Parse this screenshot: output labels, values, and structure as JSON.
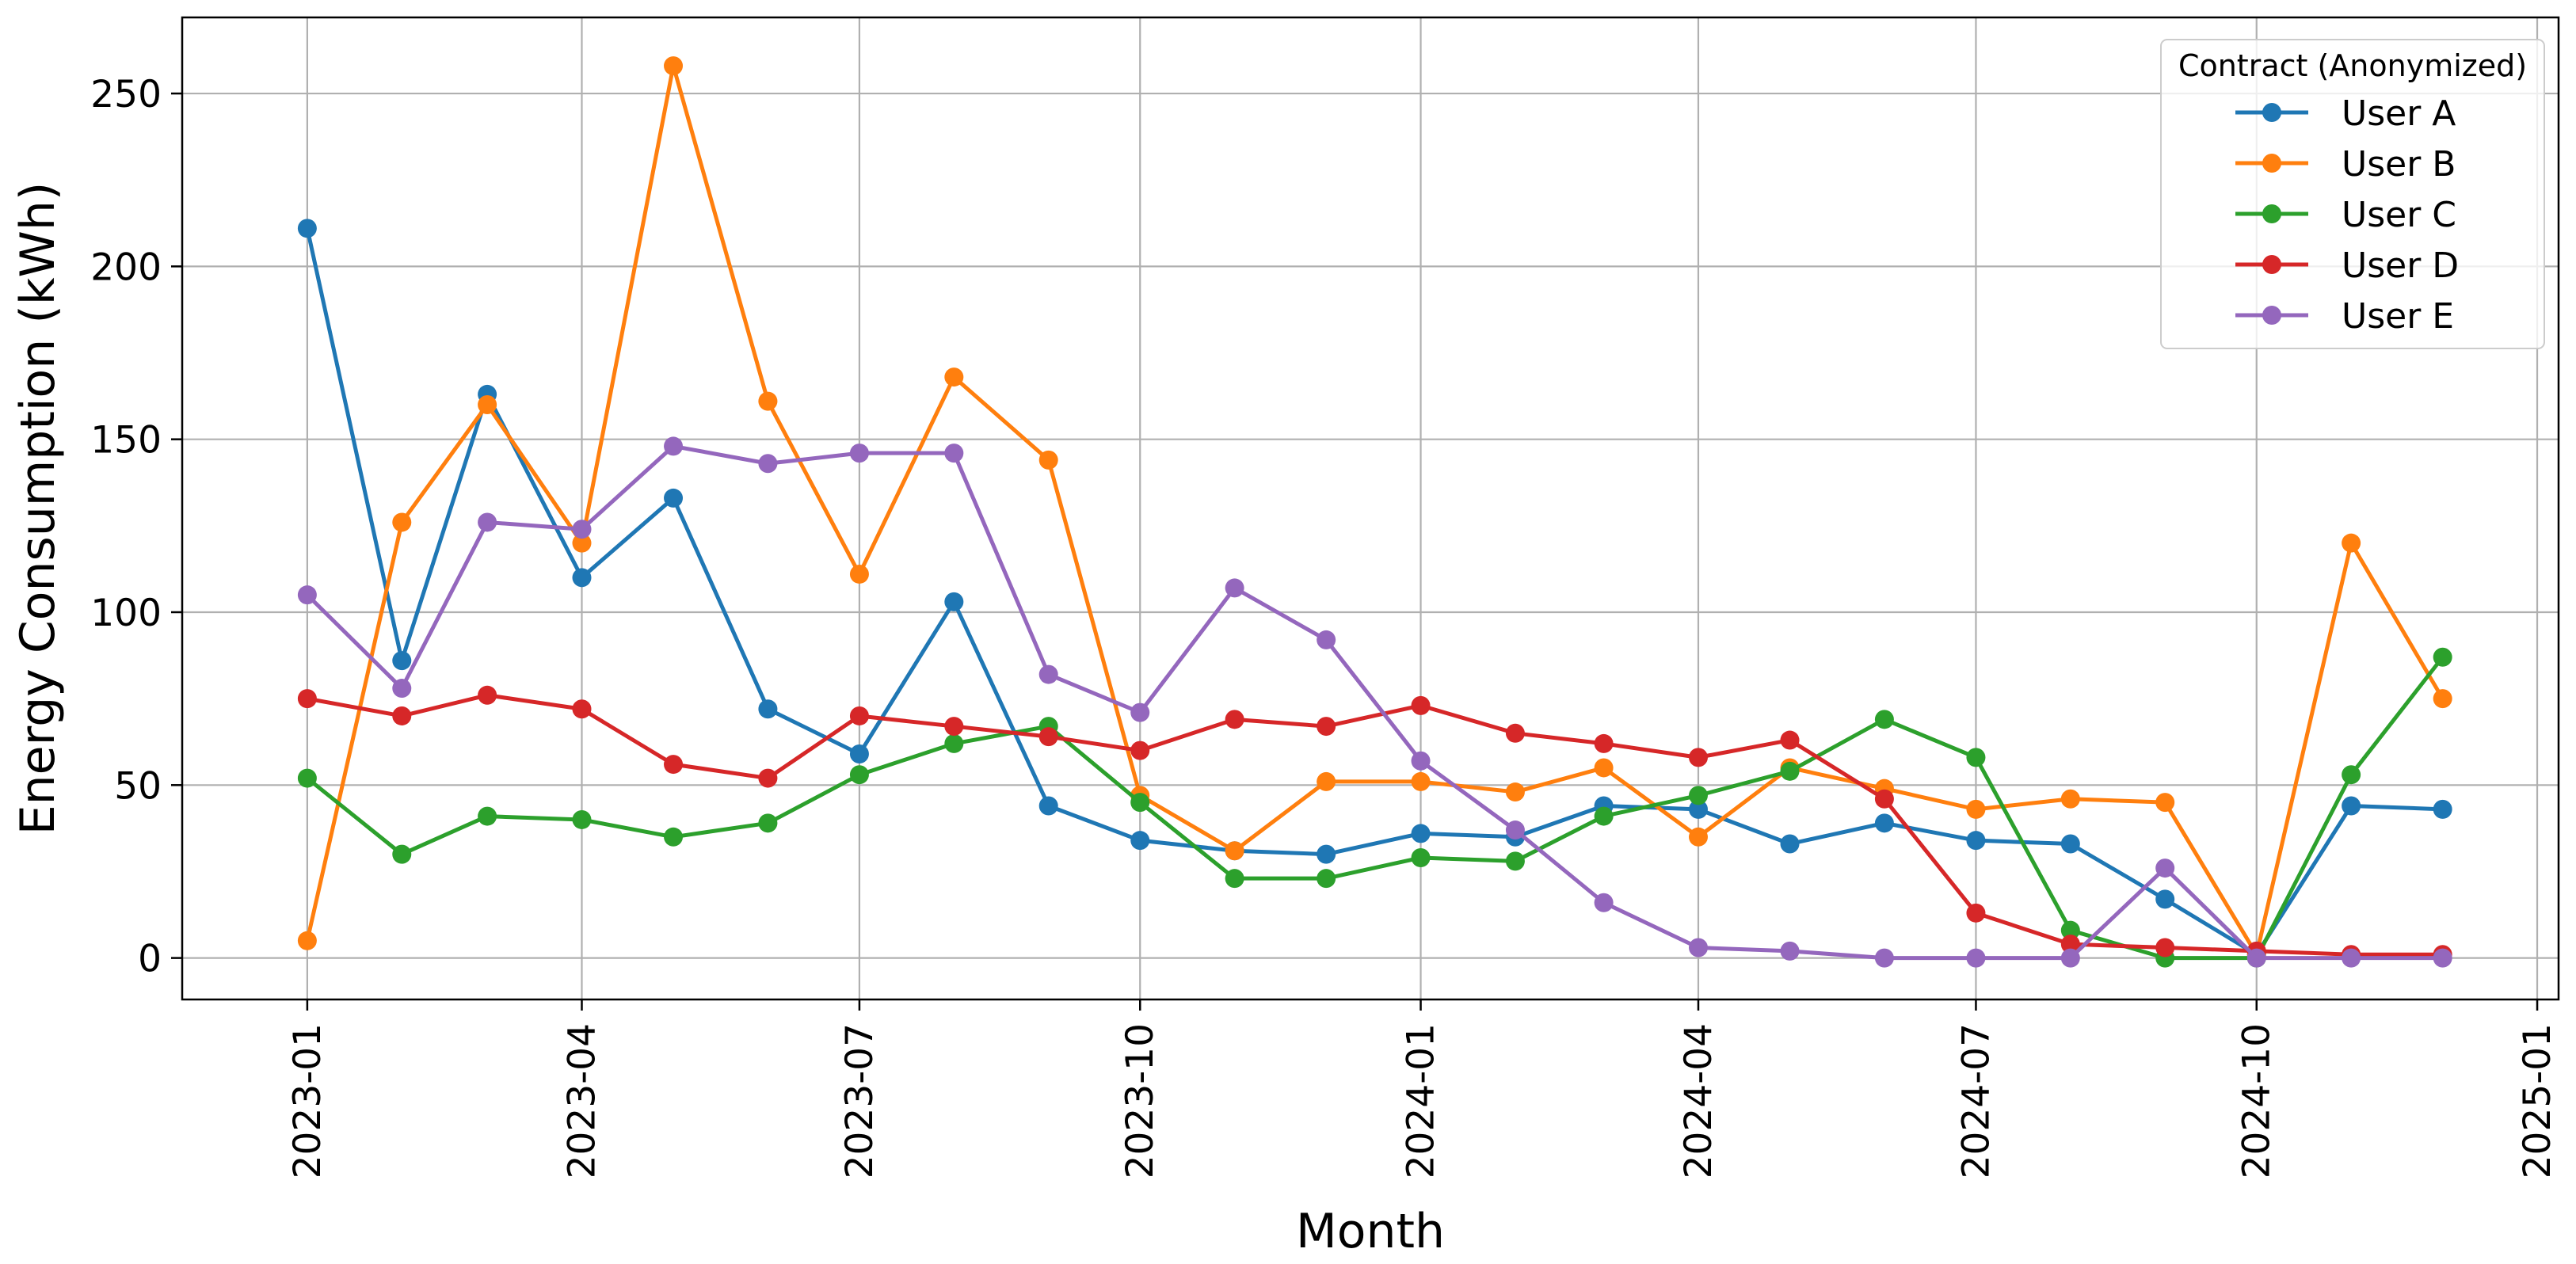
{
  "chart_data": {
    "type": "line",
    "title": "",
    "xlabel": "Month",
    "ylabel": "Energy Consumption (kWh)",
    "x": [
      "2023-01",
      "2023-02",
      "2023-03",
      "2023-04",
      "2023-05",
      "2023-06",
      "2023-07",
      "2023-08",
      "2023-09",
      "2023-10",
      "2023-11",
      "2023-12",
      "2024-01",
      "2024-02",
      "2024-03",
      "2024-04",
      "2024-05",
      "2024-06",
      "2024-07",
      "2024-08",
      "2024-09",
      "2024-10",
      "2024-11",
      "2024-12"
    ],
    "x_ticks": [
      "2023-01",
      "2023-04",
      "2023-07",
      "2023-10",
      "2024-01",
      "2024-04",
      "2024-07",
      "2024-10",
      "2025-01"
    ],
    "xlim": [
      "2022-11-21",
      "2025-01-08"
    ],
    "y_ticks": [
      "0",
      "50",
      "100",
      "150",
      "200",
      "250"
    ],
    "ylim": [
      -12,
      272
    ],
    "grid": true,
    "legend": {
      "title": "Contract (Anonymized)",
      "placement": "top-right"
    },
    "series": [
      {
        "name": "User A",
        "color": "#1f77b4",
        "values": [
          211,
          86,
          163,
          110,
          133,
          72,
          59,
          103,
          44,
          34,
          31,
          30,
          36,
          35,
          44,
          43,
          33,
          39,
          34,
          33,
          17,
          1,
          44,
          43
        ]
      },
      {
        "name": "User B",
        "color": "#ff7f0e",
        "values": [
          5,
          126,
          160,
          120,
          258,
          161,
          111,
          168,
          144,
          47,
          31,
          51,
          51,
          48,
          55,
          35,
          55,
          49,
          43,
          46,
          45,
          1,
          120,
          75
        ]
      },
      {
        "name": "User C",
        "color": "#2ca02c",
        "values": [
          52,
          30,
          41,
          40,
          35,
          39,
          53,
          62,
          67,
          45,
          23,
          23,
          29,
          28,
          41,
          47,
          54,
          69,
          58,
          8,
          0,
          0,
          53,
          87
        ]
      },
      {
        "name": "User D",
        "color": "#d62728",
        "values": [
          75,
          70,
          76,
          72,
          56,
          52,
          70,
          67,
          64,
          60,
          69,
          67,
          73,
          65,
          62,
          58,
          63,
          46,
          13,
          4,
          3,
          2,
          1,
          1
        ]
      },
      {
        "name": "User E",
        "color": "#9467bd",
        "values": [
          105,
          78,
          126,
          124,
          148,
          143,
          146,
          146,
          82,
          71,
          107,
          92,
          57,
          37,
          16,
          3,
          2,
          0,
          0,
          0,
          26,
          0,
          0,
          0
        ]
      }
    ]
  }
}
